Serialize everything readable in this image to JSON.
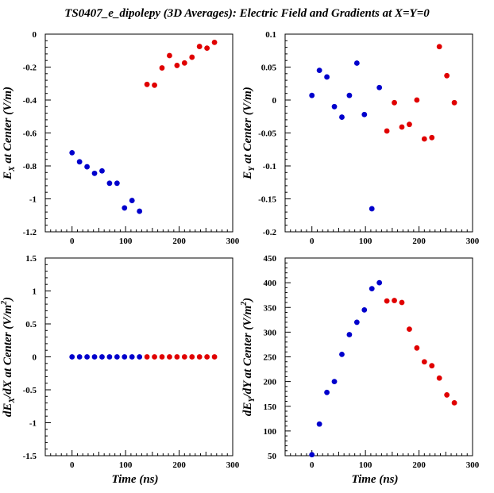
{
  "title": "TS0407_e_dipolepy (3D Averages): Electric Field and Gradients at X=Y=0",
  "colors": {
    "blue": "#0000cc",
    "red": "#e00000"
  },
  "chart_data": [
    {
      "type": "scatter",
      "ylabel_main": "E",
      "ylabel_sub": "X",
      "ylabel_rest": " at Center (V/m)",
      "xlabel": "",
      "xlim": [
        -50,
        300
      ],
      "ylim": [
        -1.2,
        0
      ],
      "xticks": [
        0,
        100,
        200,
        300
      ],
      "yticks": [
        -1.2,
        -1,
        -0.8,
        -0.6,
        -0.4,
        -0.2,
        0
      ],
      "ytick_labels": [
        "-1.2",
        "-1",
        "-0.8",
        "-0.6",
        "-0.4",
        "-0.2",
        "0"
      ],
      "series": [
        {
          "color": "blue",
          "x": [
            0,
            14,
            28,
            42,
            56,
            70,
            84,
            98,
            112,
            126
          ],
          "y": [
            -0.72,
            -0.775,
            -0.805,
            -0.845,
            -0.83,
            -0.905,
            -0.905,
            -1.055,
            -1.01,
            -1.075
          ]
        },
        {
          "color": "red",
          "x": [
            140,
            154,
            168,
            182,
            196,
            210,
            224,
            238,
            252,
            266
          ],
          "y": [
            -0.305,
            -0.31,
            -0.205,
            -0.13,
            -0.19,
            -0.175,
            -0.14,
            -0.075,
            -0.085,
            -0.05
          ]
        }
      ]
    },
    {
      "type": "scatter",
      "ylabel_main": "E",
      "ylabel_sub": "Y",
      "ylabel_rest": " at Center (V/m)",
      "xlabel": "",
      "xlim": [
        -50,
        300
      ],
      "ylim": [
        -0.2,
        0.1
      ],
      "xticks": [
        0,
        100,
        200,
        300
      ],
      "yticks": [
        -0.2,
        -0.15,
        -0.1,
        -0.05,
        0,
        0.05,
        0.1
      ],
      "ytick_labels": [
        "-0.2",
        "-0.15",
        "-0.1",
        "-0.05",
        "0",
        "0.05",
        "0.1"
      ],
      "series": [
        {
          "color": "blue",
          "x": [
            0,
            14,
            28,
            42,
            56,
            70,
            84,
            98,
            112,
            126
          ],
          "y": [
            0.007,
            0.045,
            0.035,
            -0.01,
            -0.026,
            0.007,
            0.056,
            -0.022,
            -0.165,
            0.019
          ]
        },
        {
          "color": "red",
          "x": [
            140,
            154,
            168,
            182,
            196,
            210,
            224,
            238,
            252,
            266
          ],
          "y": [
            -0.047,
            -0.004,
            -0.041,
            -0.037,
            0.0,
            -0.059,
            -0.057,
            0.081,
            0.037,
            -0.004
          ]
        }
      ]
    },
    {
      "type": "scatter",
      "ylabel_main": "dE",
      "ylabel_sub": "X",
      "ylabel_rest": "/dX at Center (V/m",
      "ylabel_sup": "2",
      "ylabel_end": ")",
      "xlabel": "Time (ns)",
      "xlim": [
        -50,
        300
      ],
      "ylim": [
        -1.5,
        1.5
      ],
      "xticks": [
        0,
        100,
        200,
        300
      ],
      "yticks": [
        -1.5,
        -1,
        -0.5,
        0,
        0.5,
        1,
        1.5
      ],
      "ytick_labels": [
        "-1.5",
        "-1",
        "-0.5",
        "0",
        "0.5",
        "1",
        "1.5"
      ],
      "series": [
        {
          "color": "blue",
          "x": [
            0,
            14,
            28,
            42,
            56,
            70,
            84,
            98,
            112,
            126
          ],
          "y": [
            0,
            0,
            0,
            0,
            0,
            0,
            0,
            0,
            0,
            0
          ]
        },
        {
          "color": "red",
          "x": [
            140,
            154,
            168,
            182,
            196,
            210,
            224,
            238,
            252,
            266
          ],
          "y": [
            0,
            0,
            0,
            0,
            0,
            0,
            0,
            0,
            0,
            0
          ]
        }
      ]
    },
    {
      "type": "scatter",
      "ylabel_main": "dE",
      "ylabel_sub": "Y",
      "ylabel_rest": "/dY at Center (V/m",
      "ylabel_sup": "2",
      "ylabel_end": ")",
      "xlabel": "Time (ns)",
      "xlim": [
        -50,
        300
      ],
      "ylim": [
        50,
        450
      ],
      "xticks": [
        0,
        100,
        200,
        300
      ],
      "yticks": [
        50,
        100,
        150,
        200,
        250,
        300,
        350,
        400,
        450
      ],
      "ytick_labels": [
        "50",
        "100",
        "150",
        "200",
        "250",
        "300",
        "350",
        "400",
        "450"
      ],
      "series": [
        {
          "color": "blue",
          "x": [
            0,
            14,
            28,
            42,
            56,
            70,
            84,
            98,
            112,
            126
          ],
          "y": [
            52,
            114,
            178,
            200,
            255,
            295,
            320,
            345,
            388,
            400
          ]
        },
        {
          "color": "red",
          "x": [
            140,
            154,
            168,
            182,
            196,
            210,
            224,
            238,
            252,
            266
          ],
          "y": [
            363,
            364,
            360,
            306,
            268,
            240,
            232,
            207,
            173,
            157
          ]
        }
      ]
    }
  ]
}
